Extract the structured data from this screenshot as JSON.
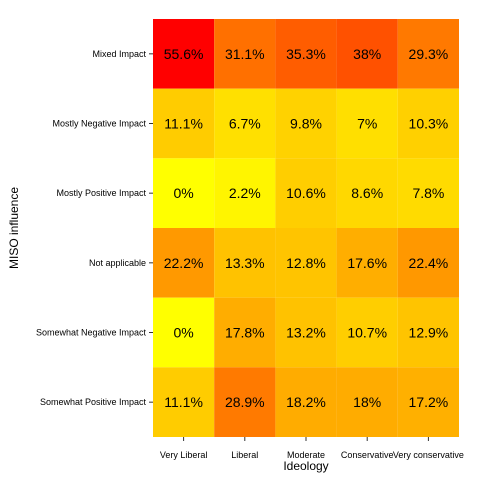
{
  "chart_data": {
    "type": "heatmap",
    "xlabel": "Ideology",
    "ylabel": "MISO influence",
    "x_categories": [
      "Very Liberal",
      "Liberal",
      "Moderate",
      "Conservative",
      "Very conservative"
    ],
    "y_categories": [
      "Mixed Impact",
      "Mostly Negative Impact",
      "Mostly Positive Impact",
      "Not applicable",
      "Somewhat Negative Impact",
      "Somewhat Positive Impact"
    ],
    "values": [
      [
        55.6,
        31.1,
        35.3,
        38,
        29.3
      ],
      [
        11.1,
        6.7,
        9.8,
        7,
        10.3
      ],
      [
        0,
        2.2,
        10.6,
        8.6,
        7.8
      ],
      [
        22.2,
        13.3,
        12.8,
        17.6,
        22.4
      ],
      [
        0,
        17.8,
        13.2,
        10.7,
        12.9
      ],
      [
        11.1,
        28.9,
        18.2,
        18,
        17.2
      ]
    ],
    "labels": [
      [
        "55.6%",
        "31.1%",
        "35.3%",
        "38%",
        "29.3%"
      ],
      [
        "11.1%",
        "6.7%",
        "9.8%",
        "7%",
        "10.3%"
      ],
      [
        "0%",
        "2.2%",
        "10.6%",
        "8.6%",
        "7.8%"
      ],
      [
        "22.2%",
        "13.3%",
        "12.8%",
        "17.6%",
        "22.4%"
      ],
      [
        "0%",
        "17.8%",
        "13.2%",
        "10.7%",
        "12.9%"
      ],
      [
        "11.1%",
        "28.9%",
        "18.2%",
        "18%",
        "17.2%"
      ]
    ],
    "color_low": "#ffff00",
    "color_high": "#ff0000",
    "value_range": [
      0,
      55.6
    ],
    "legend": "none",
    "grid": false
  }
}
